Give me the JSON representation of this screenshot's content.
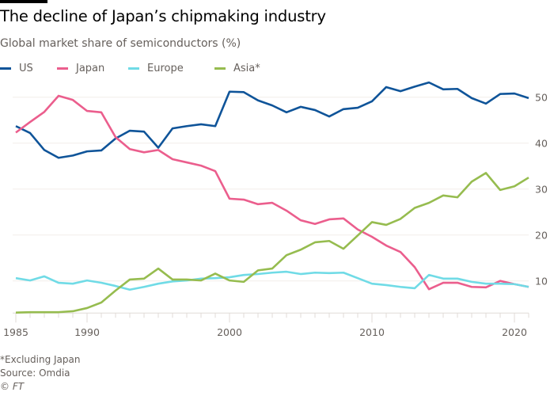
{
  "title": "The decline of Japan’s chipmaking industry",
  "subtitle": "Global market share of semiconductors (%)",
  "footnote": "*Excluding Japan",
  "source": "Source: Omdia",
  "copyright": "© FT",
  "chart_data": {
    "type": "line",
    "title": "The decline of Japan’s chipmaking industry",
    "ylabel": "Global market share of semiconductors (%)",
    "xlim": [
      1985,
      2021
    ],
    "ylim": [
      3,
      55
    ],
    "x_ticks": [
      1985,
      1990,
      2000,
      2010,
      2020
    ],
    "y_ticks": [
      10,
      20,
      30,
      40,
      50
    ],
    "y_axis_side": "right",
    "grid": true,
    "legend_position": "top-left",
    "x": [
      1985,
      1986,
      1987,
      1988,
      1989,
      1990,
      1991,
      1992,
      1993,
      1994,
      1995,
      1996,
      1997,
      1998,
      1999,
      2000,
      2001,
      2002,
      2003,
      2004,
      2005,
      2006,
      2007,
      2008,
      2009,
      2010,
      2011,
      2012,
      2013,
      2014,
      2015,
      2016,
      2017,
      2018,
      2019,
      2020,
      2021
    ],
    "series": [
      {
        "name": "US",
        "color": "#0f5499",
        "values": [
          43.7,
          42.2,
          38.5,
          36.8,
          37.3,
          38.2,
          38.4,
          41.0,
          42.7,
          42.5,
          39.0,
          43.2,
          43.7,
          44.1,
          43.7,
          51.2,
          51.1,
          49.3,
          48.2,
          46.7,
          47.9,
          47.2,
          45.8,
          47.4,
          47.7,
          49.1,
          52.2,
          51.3,
          52.3,
          53.2,
          51.7,
          51.8,
          49.8,
          48.6,
          50.7,
          50.8,
          49.8
        ]
      },
      {
        "name": "Japan",
        "color": "#eb5e8d",
        "values": [
          42.3,
          44.6,
          46.8,
          50.3,
          49.4,
          47.0,
          46.7,
          41.3,
          38.7,
          38.0,
          38.5,
          36.5,
          35.8,
          35.1,
          33.9,
          27.9,
          27.7,
          26.7,
          27.0,
          25.3,
          23.2,
          22.4,
          23.4,
          23.6,
          21.2,
          19.6,
          17.7,
          16.3,
          13.0,
          8.2,
          9.6,
          9.6,
          8.7,
          8.6,
          10.0,
          9.3,
          8.7
        ]
      },
      {
        "name": "Europe",
        "color": "#70dbe6",
        "values": [
          10.6,
          10.1,
          11.0,
          9.6,
          9.4,
          10.1,
          9.6,
          8.9,
          8.1,
          8.7,
          9.4,
          9.9,
          10.1,
          10.5,
          10.6,
          10.8,
          11.3,
          11.5,
          11.8,
          12.0,
          11.5,
          11.8,
          11.7,
          11.8,
          10.6,
          9.4,
          9.1,
          8.7,
          8.4,
          11.3,
          10.5,
          10.5,
          9.8,
          9.4,
          9.4,
          9.3,
          8.7
        ]
      },
      {
        "name": "Asia*",
        "color": "#96bc4f",
        "values": [
          3.1,
          3.2,
          3.2,
          3.2,
          3.4,
          4.1,
          5.3,
          7.9,
          10.3,
          10.5,
          12.7,
          10.3,
          10.3,
          10.1,
          11.6,
          10.1,
          9.8,
          12.3,
          12.7,
          15.6,
          16.8,
          18.4,
          18.7,
          17.0,
          19.9,
          22.8,
          22.2,
          23.5,
          25.9,
          27.0,
          28.6,
          28.2,
          31.6,
          33.5,
          29.8,
          30.6,
          32.5
        ]
      }
    ]
  }
}
